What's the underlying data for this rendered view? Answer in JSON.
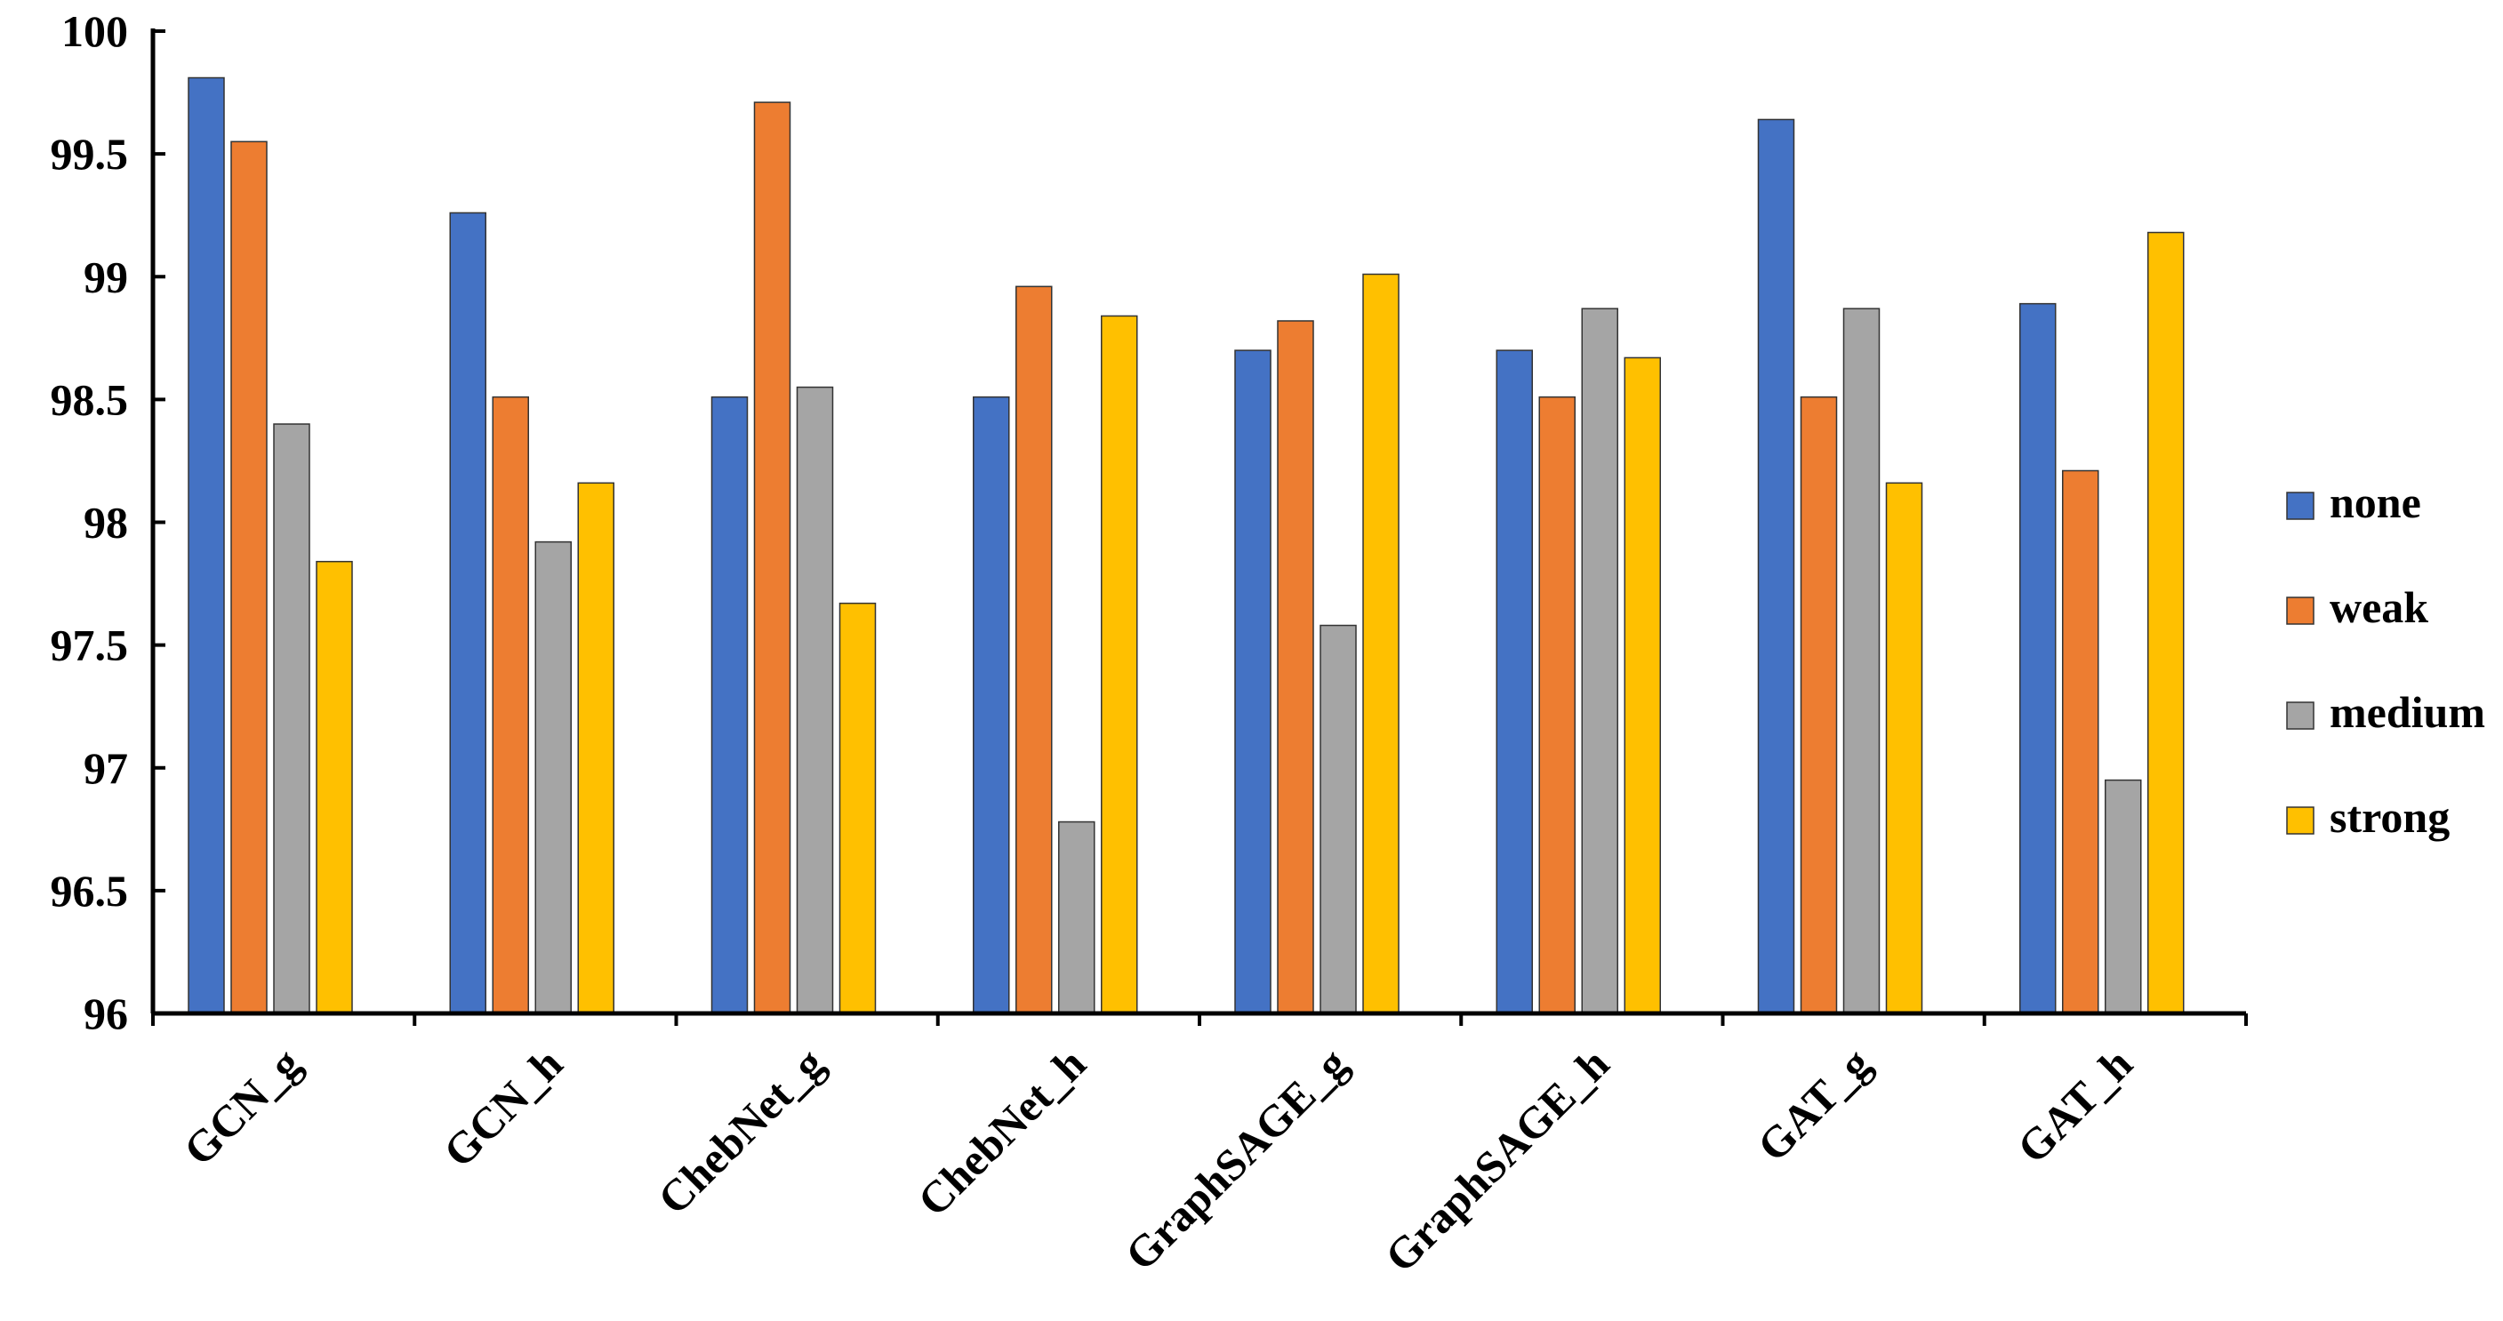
{
  "chart_data": {
    "type": "bar",
    "categories": [
      "GCN_g",
      "GCN_h",
      "ChebNet_g",
      "ChebNet_h",
      "GraphSAGE_g",
      "GraphSAGE_h",
      "GAT_g",
      "GAT_h"
    ],
    "series": [
      {
        "name": "none",
        "color": "#4472c4",
        "values": [
          99.81,
          99.26,
          98.51,
          98.51,
          98.7,
          98.7,
          99.64,
          98.89
        ]
      },
      {
        "name": "weak",
        "color": "#ed7d31",
        "values": [
          99.55,
          98.51,
          99.71,
          98.96,
          98.82,
          98.51,
          98.51,
          98.21
        ]
      },
      {
        "name": "medium",
        "color": "#a5a5a5",
        "values": [
          98.4,
          97.92,
          98.55,
          96.78,
          97.58,
          98.87,
          98.87,
          96.95
        ]
      },
      {
        "name": "strong",
        "color": "#ffc000",
        "values": [
          97.84,
          98.16,
          97.67,
          98.84,
          99.01,
          98.67,
          98.16,
          99.18
        ]
      }
    ],
    "yticks": [
      "96",
      "96.5",
      "97",
      "97.5",
      "98",
      "98.5",
      "99",
      "99.5",
      "100"
    ],
    "ylim": [
      96,
      100
    ],
    "title": "",
    "xlabel": "",
    "ylabel": "",
    "grid": false,
    "legend_position": "right"
  }
}
